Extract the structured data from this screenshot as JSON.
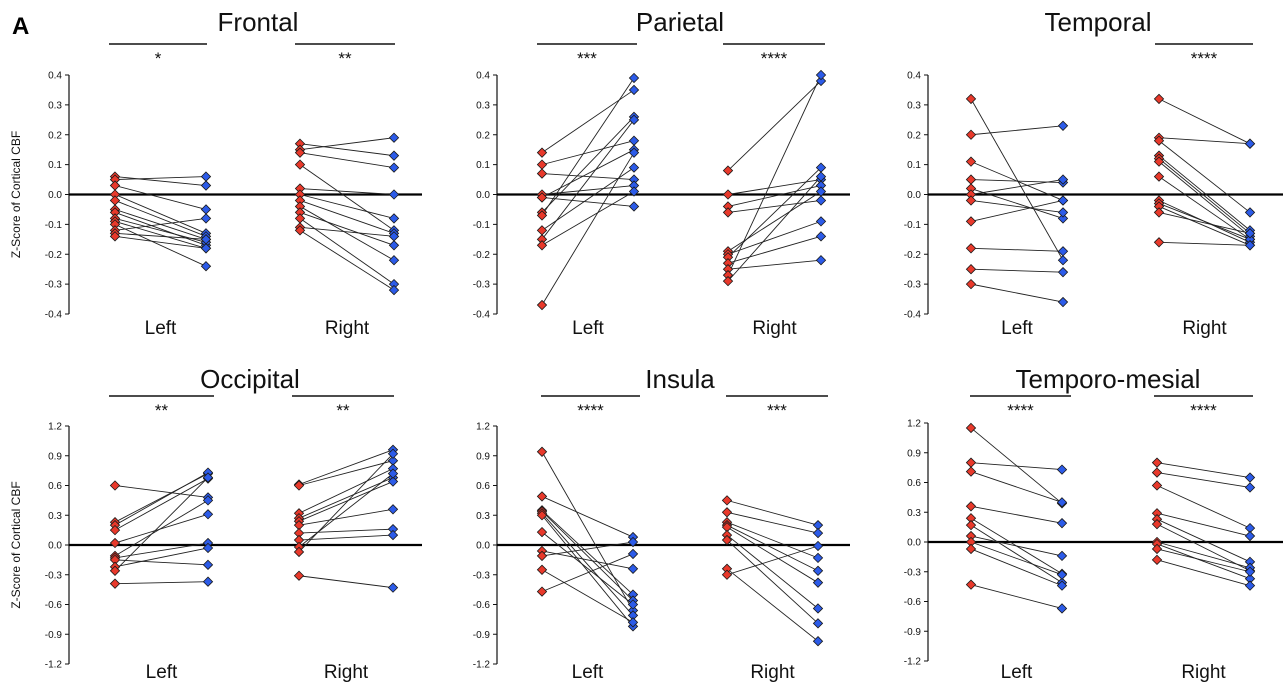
{
  "figure": {
    "panel_label": "A",
    "colors": {
      "left_pre": "#e8392b",
      "right_post": "#2c5be8",
      "line": "#222222",
      "zero": "#000000"
    }
  },
  "chart_data": [
    {
      "type": "scatter",
      "title": "Frontal",
      "ylabel": "Z-Score of Cortical CBF",
      "ylim": [
        -0.4,
        0.4
      ],
      "yticks": [
        "0.4",
        "0.3",
        "0.2",
        "0.1",
        "0.0",
        "-0.1",
        "-0.2",
        "-0.3",
        "-0.4"
      ],
      "categories": [
        "Left",
        "Right"
      ],
      "significance": [
        "*",
        "**"
      ],
      "series": [
        {
          "group": "Left",
          "red": [
            0.06,
            0.05,
            0.03,
            0.0,
            -0.02,
            -0.05,
            -0.06,
            -0.08,
            -0.09,
            -0.1,
            -0.12,
            -0.13,
            -0.14
          ],
          "blue": [
            0.03,
            0.06,
            -0.05,
            -0.13,
            -0.14,
            -0.15,
            -0.17,
            -0.16,
            -0.18,
            -0.24,
            -0.08,
            -0.15,
            -0.18
          ]
        },
        {
          "group": "Right",
          "red": [
            0.17,
            0.15,
            0.14,
            0.1,
            0.02,
            0.0,
            -0.02,
            -0.04,
            -0.06,
            -0.08,
            -0.11,
            -0.12
          ],
          "blue": [
            0.13,
            0.19,
            0.09,
            -0.12,
            0.0,
            -0.08,
            -0.13,
            -0.22,
            -0.17,
            -0.3,
            -0.14,
            -0.32
          ]
        }
      ]
    },
    {
      "type": "scatter",
      "title": "Parietal",
      "ylabel": "",
      "ylim": [
        -0.4,
        0.4
      ],
      "yticks": [
        "0.4",
        "0.3",
        "0.2",
        "0.1",
        "0.0",
        "-0.1",
        "-0.2",
        "-0.3",
        "-0.4"
      ],
      "categories": [
        "Left",
        "Right"
      ],
      "significance": [
        "***",
        "****"
      ],
      "series": [
        {
          "group": "Left",
          "red": [
            0.14,
            0.1,
            0.07,
            0.0,
            -0.01,
            -0.06,
            -0.07,
            -0.12,
            -0.15,
            -0.17,
            -0.37
          ],
          "blue": [
            0.35,
            0.18,
            0.05,
            0.03,
            0.15,
            0.26,
            0.39,
            0.09,
            0.25,
            0.01,
            0.14
          ],
          "extra_pairs": [
            [
              -0.01,
              -0.04
            ]
          ]
        },
        {
          "group": "Right",
          "red": [
            0.08,
            0.0,
            -0.04,
            -0.06,
            -0.19,
            -0.2,
            -0.21,
            -0.23,
            -0.25,
            -0.27,
            -0.29
          ],
          "blue": [
            0.38,
            0.05,
            0.03,
            -0.02,
            0.01,
            -0.09,
            0.09,
            -0.14,
            -0.22,
            0.4,
            0.06
          ]
        }
      ]
    },
    {
      "type": "scatter",
      "title": "Temporal",
      "ylabel": "",
      "ylim": [
        -0.4,
        0.4
      ],
      "yticks": [
        "0.4",
        "0.3",
        "0.2",
        "0.1",
        "0.0",
        "-0.1",
        "-0.2",
        "-0.3",
        "-0.4"
      ],
      "categories": [
        "Left",
        "Right"
      ],
      "significance": [
        "",
        "****"
      ],
      "series": [
        {
          "group": "Left",
          "red": [
            0.32,
            0.2,
            0.11,
            0.05,
            0.02,
            0.0,
            -0.02,
            -0.09,
            -0.18,
            -0.25,
            -0.3
          ],
          "blue": [
            -0.22,
            0.23,
            -0.02,
            0.04,
            -0.08,
            0.05,
            -0.06,
            -0.02,
            -0.19,
            -0.26,
            -0.36
          ]
        },
        {
          "group": "Right",
          "red": [
            0.32,
            0.19,
            0.18,
            0.13,
            0.12,
            0.11,
            0.06,
            -0.02,
            -0.03,
            -0.04,
            -0.06,
            -0.16
          ],
          "blue": [
            0.17,
            0.17,
            -0.06,
            -0.12,
            -0.13,
            -0.14,
            -0.15,
            -0.16,
            -0.15,
            -0.17,
            -0.13,
            -0.17
          ]
        }
      ]
    },
    {
      "type": "scatter",
      "title": "Occipital",
      "ylabel": "Z-Score of Cortical CBF",
      "ylim": [
        -1.2,
        1.2
      ],
      "yticks": [
        "1.2",
        "0.9",
        "0.6",
        "0.3",
        "0.0",
        "-0.3",
        "-0.6",
        "-0.9",
        "-1.2"
      ],
      "categories": [
        "Left",
        "Right"
      ],
      "significance": [
        "**",
        "**"
      ],
      "series": [
        {
          "group": "Left",
          "red": [
            0.6,
            0.23,
            0.2,
            0.15,
            0.02,
            -0.11,
            -0.13,
            -0.15,
            -0.22,
            -0.26,
            -0.39
          ],
          "blue": [
            0.48,
            0.72,
            0.73,
            0.67,
            0.31,
            0.45,
            0.02,
            -0.2,
            -0.03,
            0.68,
            -0.37
          ]
        },
        {
          "group": "Right",
          "red": [
            0.61,
            0.6,
            0.32,
            0.27,
            0.24,
            0.2,
            0.12,
            0.05,
            -0.02,
            -0.07,
            -0.31
          ],
          "blue": [
            0.96,
            0.85,
            0.77,
            0.68,
            0.64,
            0.36,
            0.16,
            0.1,
            0.72,
            0.92,
            -0.43
          ]
        }
      ]
    },
    {
      "type": "scatter",
      "title": "Insula",
      "ylabel": "",
      "ylim": [
        -1.2,
        1.2
      ],
      "yticks": [
        "1.2",
        "0.9",
        "0.6",
        "0.3",
        "0.0",
        "-0.3",
        "-0.6",
        "-0.9",
        "-1.2"
      ],
      "categories": [
        "Left",
        "Right"
      ],
      "significance": [
        "****",
        "***"
      ],
      "series": [
        {
          "group": "Left",
          "red": [
            0.94,
            0.49,
            0.35,
            0.34,
            0.32,
            0.3,
            0.13,
            -0.06,
            -0.11,
            -0.25,
            -0.47
          ],
          "blue": [
            -0.66,
            0.08,
            -0.5,
            -0.56,
            -0.71,
            -0.82,
            -0.6,
            -0.24,
            0.03,
            -0.78,
            -0.09
          ]
        },
        {
          "group": "Right",
          "red": [
            0.45,
            0.33,
            0.23,
            0.2,
            0.18,
            0.1,
            0.05,
            -0.24,
            -0.3
          ],
          "blue": [
            0.2,
            0.12,
            -0.13,
            -0.26,
            -0.38,
            -0.64,
            -0.79,
            -0.97,
            -0.01
          ]
        }
      ]
    },
    {
      "type": "scatter",
      "title": "Temporo-mesial",
      "ylabel": "",
      "ylim": [
        -1.2,
        1.2
      ],
      "yticks": [
        "1.2",
        "0.9",
        "0.6",
        "0.3",
        "0.0",
        "-0.3",
        "-0.6",
        "-0.9",
        "-1.2"
      ],
      "categories": [
        "Left",
        "Right"
      ],
      "significance": [
        "****",
        "****"
      ],
      "series": [
        {
          "group": "Left",
          "red": [
            1.15,
            0.8,
            0.71,
            0.36,
            0.24,
            0.17,
            0.06,
            0.0,
            -0.07,
            -0.43
          ],
          "blue": [
            0.39,
            0.73,
            0.4,
            0.19,
            -0.32,
            -0.41,
            -0.14,
            -0.33,
            -0.44,
            -0.67
          ]
        },
        {
          "group": "Right",
          "red": [
            0.8,
            0.7,
            0.57,
            0.29,
            0.23,
            0.18,
            0.0,
            -0.02,
            -0.07,
            -0.18
          ],
          "blue": [
            0.65,
            0.55,
            0.14,
            0.06,
            -0.2,
            -0.29,
            -0.26,
            -0.37,
            -0.3,
            -0.44
          ]
        }
      ]
    }
  ]
}
